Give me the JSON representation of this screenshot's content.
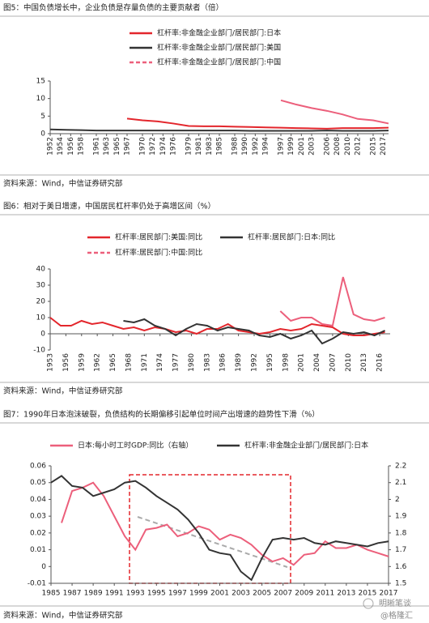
{
  "chart_data": [
    {
      "type": "line",
      "title": "图5：中国负债增长中，企业负债是存量负债的主要贡献者（倍）",
      "source": "资料来源：Wind，中信证券研究部",
      "x": [
        1952,
        1955,
        1958,
        1961,
        1964,
        1967,
        1970,
        1973,
        1976,
        1979,
        1982,
        1985,
        1988,
        1991,
        1994,
        1997,
        2000,
        2003,
        2006,
        2009,
        2012,
        2015,
        2018
      ],
      "xlim": [
        1952,
        2018
      ],
      "xticks": [
        1952,
        1954,
        1956,
        1958,
        1961,
        1963,
        1965,
        1967,
        1970,
        1972,
        1974,
        1976,
        1979,
        1981,
        1983,
        1985,
        1988,
        1990,
        1992,
        1994,
        1997,
        1999,
        2001,
        2003,
        2006,
        2008,
        2010,
        2012,
        2015,
        2017
      ],
      "ylim": [
        0,
        15
      ],
      "yticks": [
        0,
        5,
        10,
        15
      ],
      "series": [
        {
          "name": "杠杆率:非金融企业部门/居民部门:日本",
          "color": "#e3262c",
          "values": [
            null,
            null,
            null,
            null,
            null,
            4.3,
            3.8,
            3.5,
            2.9,
            2.2,
            2.1,
            2.1,
            2.0,
            1.9,
            1.8,
            1.7,
            1.6,
            1.5,
            1.4,
            1.6,
            1.6,
            1.6,
            1.7
          ]
        },
        {
          "name": "杠杆率:非金融企业部门/居民部门:美国",
          "color": "#333333",
          "values": [
            1.2,
            1.1,
            1.0,
            0.9,
            0.9,
            0.9,
            0.9,
            0.9,
            0.9,
            0.9,
            0.9,
            0.9,
            0.9,
            0.8,
            0.8,
            0.8,
            0.8,
            0.8,
            0.9,
            0.8,
            0.8,
            0.8,
            0.9
          ]
        },
        {
          "name": "杠杆率:非金融企业部门/居民部门:中国",
          "color": "#ec5f7b",
          "dashed": true,
          "values": [
            null,
            null,
            null,
            null,
            null,
            null,
            null,
            null,
            null,
            null,
            null,
            null,
            null,
            null,
            null,
            9.5,
            8.3,
            7.3,
            6.5,
            5.5,
            4.2,
            3.8,
            2.9
          ]
        }
      ]
    },
    {
      "type": "line",
      "title": "图6：相对于美日增速，中国居民杠杆率仍处于高增区间（%）",
      "source": "资料来源：Wind，中信证券研究部",
      "x": [
        1953,
        1955,
        1957,
        1959,
        1961,
        1963,
        1965,
        1967,
        1969,
        1971,
        1973,
        1975,
        1977,
        1979,
        1981,
        1983,
        1985,
        1987,
        1989,
        1991,
        1993,
        1995,
        1997,
        1999,
        2001,
        2003,
        2005,
        2007,
        2009,
        2011,
        2013,
        2015,
        2017
      ],
      "xlim": [
        1953,
        2018
      ],
      "xticks": [
        1953,
        1956,
        1959,
        1962,
        1965,
        1968,
        1971,
        1974,
        1977,
        1980,
        1983,
        1986,
        1989,
        1992,
        1995,
        1998,
        2001,
        2004,
        2007,
        2010,
        2013,
        2016
      ],
      "ylim": [
        -10,
        40
      ],
      "yticks": [
        -10,
        0,
        10,
        20,
        30,
        40
      ],
      "series": [
        {
          "name": "杠杆率:居民部门:美国:同比",
          "color": "#e3262c",
          "values": [
            10,
            5,
            5,
            8,
            6,
            7,
            5,
            3,
            4,
            2,
            4,
            3,
            1,
            2,
            0,
            3,
            3,
            6,
            2,
            1,
            0,
            1,
            3,
            2,
            3,
            6,
            5,
            4,
            0,
            -1,
            -1,
            0,
            1
          ]
        },
        {
          "name": "杠杆率:居民部门:日本:同比",
          "color": "#333333",
          "values": [
            null,
            null,
            null,
            null,
            null,
            null,
            null,
            8,
            7,
            9,
            5,
            3,
            -1,
            3,
            6,
            5,
            2,
            4,
            3,
            2,
            -1,
            -2,
            0,
            -3,
            -1,
            2,
            -6,
            -3,
            1,
            0,
            1,
            -1,
            2
          ]
        },
        {
          "name": "杠杆率:居民部门:中国:同比",
          "color": "#ec5f7b",
          "dashed": true,
          "values": [
            null,
            null,
            null,
            null,
            null,
            null,
            null,
            null,
            null,
            null,
            null,
            null,
            null,
            null,
            null,
            null,
            null,
            null,
            null,
            null,
            null,
            null,
            14,
            8,
            10,
            10,
            6,
            5,
            35,
            12,
            9,
            8,
            10
          ]
        }
      ]
    },
    {
      "type": "line",
      "title": "图7：1990年日本泡沫破裂，负债结构的长期偏移引起单位时间产出增速的趋势性下滑（%）",
      "source": "资料来源：Wind，中信证券研究部",
      "x": [
        1985,
        1986,
        1987,
        1988,
        1989,
        1990,
        1991,
        1992,
        1993,
        1994,
        1995,
        1996,
        1997,
        1998,
        1999,
        2000,
        2001,
        2002,
        2003,
        2004,
        2005,
        2006,
        2007,
        2008,
        2009,
        2010,
        2011,
        2012,
        2013,
        2014,
        2015,
        2016,
        2017
      ],
      "xlim": [
        1985,
        2017
      ],
      "xticks": [
        1985,
        1987,
        1989,
        1991,
        1993,
        1995,
        1997,
        1999,
        2001,
        2003,
        2005,
        2007,
        2009,
        2011,
        2013,
        2015,
        2017
      ],
      "ylim": [
        -0.01,
        0.06
      ],
      "yticks": [
        -0.01,
        0,
        0.01,
        0.02,
        0.03,
        0.04,
        0.05,
        0.06
      ],
      "y2lim": [
        1.5,
        2.2
      ],
      "y2ticks": [
        1.5,
        1.6,
        1.7,
        1.8,
        1.9,
        2,
        2.1,
        2.2
      ],
      "series": [
        {
          "name": "日本:每小时工时GDP:同比（右轴）",
          "color": "#ec5f7b",
          "axis": "y2",
          "values": [
            null,
            1.86,
            2.05,
            2.07,
            2.1,
            2.02,
            1.9,
            1.78,
            1.7,
            1.82,
            1.83,
            1.85,
            1.78,
            1.8,
            1.84,
            1.82,
            1.76,
            1.79,
            1.77,
            1.73,
            1.67,
            1.63,
            1.65,
            1.61,
            1.67,
            1.68,
            1.75,
            1.71,
            1.71,
            1.73,
            1.7,
            1.68,
            1.66
          ]
        },
        {
          "name": "杠杆率:非金融企业部门/居民部门:日本",
          "color": "#333333",
          "values": [
            0.05,
            0.054,
            0.048,
            0.047,
            0.042,
            0.044,
            0.046,
            0.05,
            0.051,
            0.047,
            0.042,
            0.038,
            0.034,
            0.028,
            0.02,
            0.01,
            0.008,
            0.007,
            -0.003,
            -0.008,
            0.005,
            0.016,
            0.017,
            0.016,
            0.017,
            0.014,
            0.013,
            0.015,
            0.014,
            0.013,
            0.012,
            0.014,
            0.015
          ]
        }
      ]
    }
  ],
  "watermark": {
    "brand": "明晰笔谈",
    "handle": "@格隆汇"
  }
}
